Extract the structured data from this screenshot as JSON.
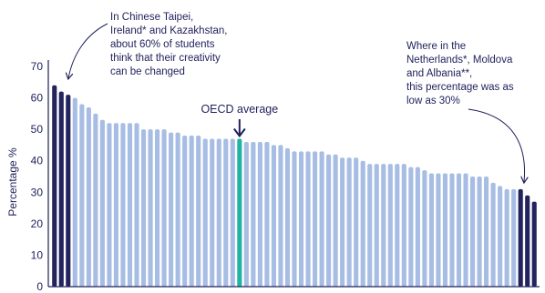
{
  "chart_data": {
    "type": "bar",
    "title": "",
    "xlabel": "",
    "ylabel": "Percentage %",
    "ylim": [
      0,
      70
    ],
    "yticks": [
      0,
      10,
      20,
      30,
      40,
      50,
      60,
      70
    ],
    "grid": false,
    "legend": "none",
    "values": [
      64,
      62,
      61,
      60,
      58,
      57,
      55,
      53,
      52,
      52,
      52,
      52,
      52,
      50,
      50,
      50,
      50,
      49,
      49,
      48,
      48,
      48,
      47,
      47,
      47,
      47,
      47,
      47,
      46,
      46,
      46,
      46,
      45,
      45,
      44,
      43,
      43,
      43,
      43,
      43,
      42,
      42,
      41,
      41,
      41,
      40,
      39,
      39,
      39,
      39,
      39,
      39,
      38,
      38,
      37,
      36,
      36,
      36,
      36,
      36,
      36,
      35,
      35,
      35,
      33,
      32,
      31,
      31,
      31,
      29,
      27
    ],
    "highlight_high": [
      0,
      1,
      2
    ],
    "highlight_low": [
      68,
      69,
      70
    ],
    "average_index": 27,
    "colors": {
      "bar": "#a7bde4",
      "highlight": "#23235e",
      "average": "#1fb4a4",
      "axis": "#1f1f5c",
      "text": "#1f1f5c"
    },
    "annotations": {
      "high": [
        "In Chinese Taipei,",
        "Ireland* and Kazakhstan,",
        "about 60% of students",
        "think that their creativity",
        "can be changed"
      ],
      "low": [
        "Where in the",
        "Netherlands*, Moldova",
        "and Albania**,",
        "this percentage was as",
        "low as 30%"
      ],
      "average": "OECD average"
    }
  }
}
